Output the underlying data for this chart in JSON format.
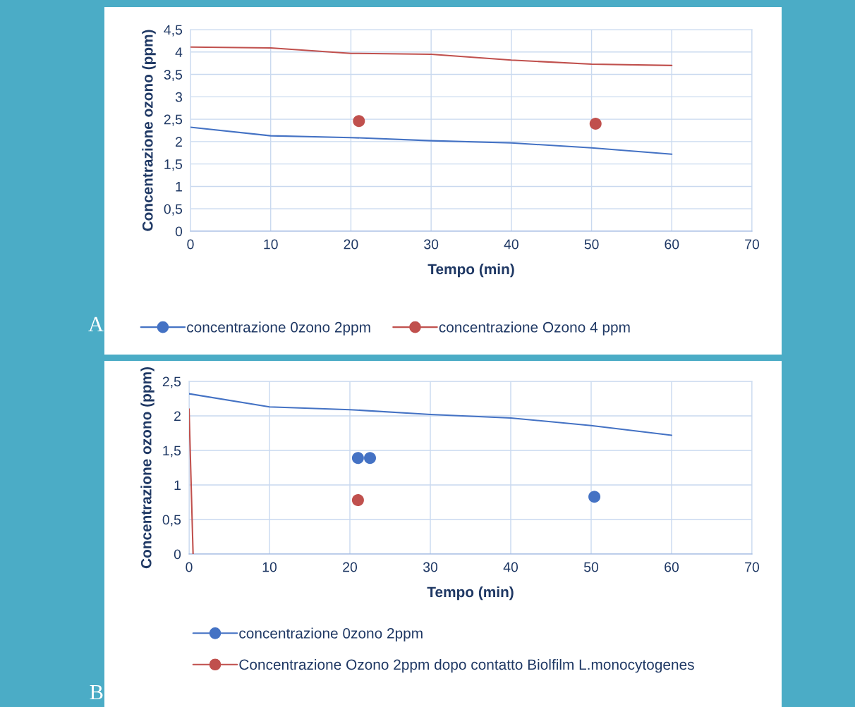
{
  "chart_data": [
    {
      "type": "line",
      "xlabel": "Tempo (min)",
      "ylabel": "Concentrazione ozono (ppm)",
      "xlim": [
        0,
        70
      ],
      "xticks": [
        0,
        10,
        20,
        30,
        40,
        50,
        60,
        70
      ],
      "ylim": [
        0,
        4.5
      ],
      "yticks": [
        {
          "value": 0,
          "label": "0"
        },
        {
          "value": 0.5,
          "label": "0,5"
        },
        {
          "value": 1,
          "label": "1"
        },
        {
          "value": 1.5,
          "label": "1,5"
        },
        {
          "value": 2,
          "label": "2"
        },
        {
          "value": 2.5,
          "label": "2,5"
        },
        {
          "value": 3,
          "label": "3"
        },
        {
          "value": 3.5,
          "label": "3,5"
        },
        {
          "value": 4,
          "label": "4"
        },
        {
          "value": 4.5,
          "label": "4,5"
        }
      ],
      "grid": true,
      "legend": "bottom",
      "annotations": [
        "A"
      ],
      "series": [
        {
          "name": "concentrazione 0zono 2ppm",
          "color": "#4472c4",
          "x": [
            0,
            10,
            20,
            30,
            40,
            50,
            60
          ],
          "values": [
            2.32,
            2.13,
            2.09,
            2.02,
            1.97,
            1.86,
            1.72
          ]
        },
        {
          "name": "concentrazione Ozono 4 ppm",
          "color": "#c0504d",
          "x": [
            0,
            10,
            20,
            30,
            40,
            50,
            60
          ],
          "values": [
            4.11,
            4.09,
            3.97,
            3.95,
            3.82,
            3.73,
            3.7
          ]
        },
        {
          "type": "scatter",
          "color": "#c0504d",
          "marker": "circle",
          "x": [
            21,
            50.5
          ],
          "values": [
            2.46,
            2.4
          ]
        }
      ]
    },
    {
      "type": "line",
      "xlabel": "Tempo (min)",
      "ylabel": "Concentrazione ozono (ppm)",
      "xlim": [
        0,
        70
      ],
      "xticks": [
        0,
        10,
        20,
        30,
        40,
        50,
        60,
        70
      ],
      "ylim": [
        0,
        2.5
      ],
      "yticks": [
        {
          "value": 0,
          "label": "0"
        },
        {
          "value": 0.5,
          "label": "0,5"
        },
        {
          "value": 1,
          "label": "1"
        },
        {
          "value": 1.5,
          "label": "1,5"
        },
        {
          "value": 2,
          "label": "2"
        },
        {
          "value": 2.5,
          "label": "2,5"
        }
      ],
      "grid": true,
      "legend": "bottom",
      "annotations": [
        "B"
      ],
      "series": [
        {
          "name": "concentrazione 0zono 2ppm",
          "color": "#4472c4",
          "x": [
            0,
            10,
            20,
            30,
            40,
            50,
            60
          ],
          "values": [
            2.32,
            2.13,
            2.09,
            2.02,
            1.97,
            1.86,
            1.72
          ]
        },
        {
          "name": "Concentrazione Ozono 2ppm dopo contatto Biolfilm L.monocytogenes",
          "color": "#c0504d",
          "x": [
            0,
            0.5
          ],
          "values": [
            2.1,
            0
          ]
        },
        {
          "type": "scatter",
          "color": "#4472c4",
          "marker": "circle",
          "x": [
            21,
            22.5,
            50.4
          ],
          "values": [
            1.39,
            1.39,
            0.83
          ]
        },
        {
          "type": "scatter",
          "color": "#c0504d",
          "marker": "circle",
          "x": [
            21
          ],
          "values": [
            0.78
          ]
        }
      ]
    }
  ]
}
